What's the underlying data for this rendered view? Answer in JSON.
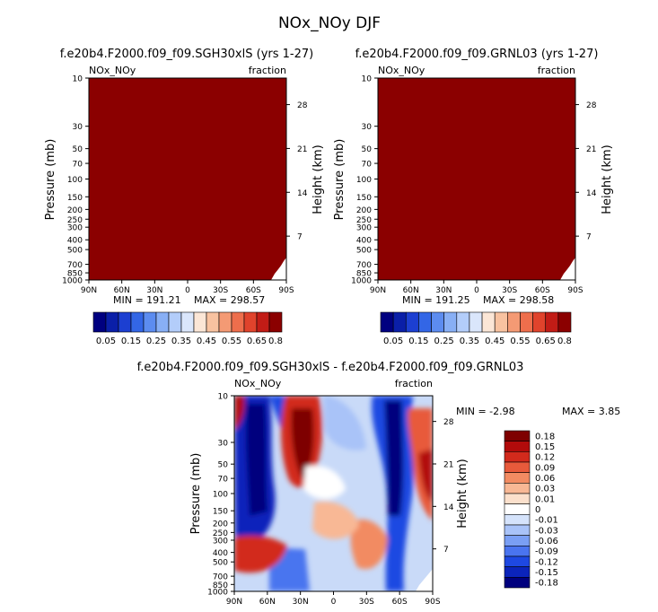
{
  "page_title": "NOx_NOy DJF",
  "colors": {
    "dark_red": "#8b0000",
    "abs_scale": [
      "#000080",
      "#0a1fa8",
      "#1c3fd1",
      "#3366e6",
      "#5c8cf0",
      "#88aff5",
      "#b3cdfa",
      "#dae6fb",
      "#fbe6d6",
      "#f8c2a0",
      "#f49a74",
      "#ee6e4c",
      "#e0432c",
      "#c21c16",
      "#8b0000"
    ],
    "diff_scale": [
      "#00007e",
      "#0b24bb",
      "#1e48e2",
      "#4a74ef",
      "#7a9ff4",
      "#a9c3f8",
      "#d5e3fb",
      "#ffffff",
      "#fbe0cc",
      "#f8b895",
      "#f28b62",
      "#e85a3b",
      "#d22a1c",
      "#b20b0b",
      "#7e0000"
    ]
  },
  "chart_data": [
    {
      "id": "panel-left",
      "type": "heatmap",
      "title": "f.e20b4.F2000.f09_f09.SGH30xlS (yrs 1-27)",
      "subtitle_left": "NOx_NOy",
      "subtitle_right": "fraction",
      "xlabel": "",
      "ylabel": "Pressure (mb)",
      "y2label": "Height (km)",
      "x_ticks": [
        "90N",
        "60N",
        "30N",
        "0",
        "30S",
        "60S",
        "90S"
      ],
      "y_ticks": [
        "10",
        "30",
        "50",
        "70",
        "100",
        "150",
        "200",
        "250",
        "300",
        "400",
        "500",
        "700",
        "850",
        "1000"
      ],
      "y2_ticks": [
        "28",
        "21",
        "14",
        "7"
      ],
      "min_label": "MIN = 191.21",
      "max_label": "MAX = 298.57",
      "colorbar_labels": [
        "0.05",
        "0.15",
        "0.25",
        "0.35",
        "0.45",
        "0.55",
        "0.65",
        "0.8"
      ]
    },
    {
      "id": "panel-right",
      "type": "heatmap",
      "title": "f.e20b4.F2000.f09_f09.GRNL03 (yrs 1-27)",
      "subtitle_left": "NOx_NOy",
      "subtitle_right": "fraction",
      "xlabel": "",
      "ylabel": "Pressure (mb)",
      "y2label": "Height (km)",
      "x_ticks": [
        "90N",
        "60N",
        "30N",
        "0",
        "30S",
        "60S",
        "90S"
      ],
      "y_ticks": [
        "10",
        "30",
        "50",
        "70",
        "100",
        "150",
        "200",
        "250",
        "300",
        "400",
        "500",
        "700",
        "850",
        "1000"
      ],
      "y2_ticks": [
        "28",
        "21",
        "14",
        "7"
      ],
      "min_label": "MIN = 191.25",
      "max_label": "MAX = 298.58",
      "colorbar_labels": [
        "0.05",
        "0.15",
        "0.25",
        "0.35",
        "0.45",
        "0.55",
        "0.65",
        "0.8"
      ]
    },
    {
      "id": "panel-diff",
      "type": "heatmap",
      "title": "f.e20b4.F2000.f09_f09.SGH30xlS - f.e20b4.F2000.f09_f09.GRNL03",
      "subtitle_left": "NOx_NOy",
      "subtitle_right": "fraction",
      "xlabel": "",
      "ylabel": "Pressure (mb)",
      "y2label": "Height (km)",
      "x_ticks": [
        "90N",
        "60N",
        "30N",
        "0",
        "30S",
        "60S",
        "90S"
      ],
      "y_ticks": [
        "10",
        "30",
        "50",
        "70",
        "100",
        "150",
        "200",
        "250",
        "300",
        "400",
        "500",
        "700",
        "850",
        "1000"
      ],
      "y2_ticks": [
        "28",
        "21",
        "14",
        "7"
      ],
      "min_label": "MIN = -2.98",
      "max_label": "MAX = 3.85",
      "colorbar_labels": [
        "0.18",
        "0.15",
        "0.12",
        "0.09",
        "0.06",
        "0.03",
        "0.01",
        "0",
        "-0.01",
        "-0.03",
        "-0.06",
        "-0.09",
        "-0.12",
        "-0.15",
        "-0.18"
      ]
    }
  ]
}
